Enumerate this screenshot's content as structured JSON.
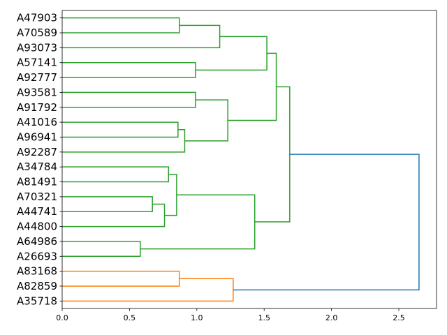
{
  "chart_data": {
    "type": "dendrogram",
    "orientation": "left",
    "title": "",
    "xlabel": "",
    "ylabel": "",
    "xlim": [
      0.0,
      2.78
    ],
    "xticks": [
      0.0,
      0.5,
      1.0,
      1.5,
      2.0,
      2.5
    ],
    "xtick_labels": [
      "0.0",
      "0.5",
      "1.0",
      "1.5",
      "2.0",
      "2.5"
    ],
    "leaves": [
      "A47903",
      "A70589",
      "A93073",
      "A57141",
      "A92777",
      "A93581",
      "A91792",
      "A41016",
      "A96941",
      "A92287",
      "A34784",
      "A81491",
      "A70321",
      "A44741",
      "A44800",
      "A64986",
      "A26693",
      "A83168",
      "A82859",
      "A35718"
    ],
    "colors": {
      "green": "#2ca02c",
      "orange": "#ff7f0e",
      "blue": "#1f77b4"
    },
    "merges": [
      {
        "id": "c1",
        "children": [
          "A47903",
          "A70589"
        ],
        "distance": 0.87,
        "color": "green"
      },
      {
        "id": "c2",
        "children": [
          "c1",
          "A93073"
        ],
        "distance": 1.17,
        "color": "green"
      },
      {
        "id": "c3",
        "children": [
          "A57141",
          "A92777"
        ],
        "distance": 0.99,
        "color": "green"
      },
      {
        "id": "c4",
        "children": [
          "c2",
          "c3"
        ],
        "distance": 1.52,
        "color": "green"
      },
      {
        "id": "c5",
        "children": [
          "A93581",
          "A91792"
        ],
        "distance": 0.99,
        "color": "green"
      },
      {
        "id": "c6",
        "children": [
          "A41016",
          "A96941"
        ],
        "distance": 0.86,
        "color": "green"
      },
      {
        "id": "c7",
        "children": [
          "c6",
          "A92287"
        ],
        "distance": 0.91,
        "color": "green"
      },
      {
        "id": "c8",
        "children": [
          "c5",
          "c7"
        ],
        "distance": 1.23,
        "color": "green"
      },
      {
        "id": "c9",
        "children": [
          "c4",
          "c8"
        ],
        "distance": 1.59,
        "color": "green"
      },
      {
        "id": "c10",
        "children": [
          "A34784",
          "A81491"
        ],
        "distance": 0.79,
        "color": "green"
      },
      {
        "id": "c11",
        "children": [
          "A70321",
          "A44741"
        ],
        "distance": 0.67,
        "color": "green"
      },
      {
        "id": "c12",
        "children": [
          "c11",
          "A44800"
        ],
        "distance": 0.76,
        "color": "green"
      },
      {
        "id": "c13",
        "children": [
          "c10",
          "c12"
        ],
        "distance": 0.85,
        "color": "green"
      },
      {
        "id": "c14",
        "children": [
          "A64986",
          "A26693"
        ],
        "distance": 0.58,
        "color": "green"
      },
      {
        "id": "c15",
        "children": [
          "c13",
          "c14"
        ],
        "distance": 1.43,
        "color": "green"
      },
      {
        "id": "c16",
        "children": [
          "c9",
          "c15"
        ],
        "distance": 1.69,
        "color": "green"
      },
      {
        "id": "c17",
        "children": [
          "A83168",
          "A82859"
        ],
        "distance": 0.87,
        "color": "orange"
      },
      {
        "id": "c18",
        "children": [
          "c17",
          "A35718"
        ],
        "distance": 1.27,
        "color": "orange"
      },
      {
        "id": "c19",
        "children": [
          "c16",
          "c18"
        ],
        "distance": 2.65,
        "color": "blue"
      }
    ]
  }
}
